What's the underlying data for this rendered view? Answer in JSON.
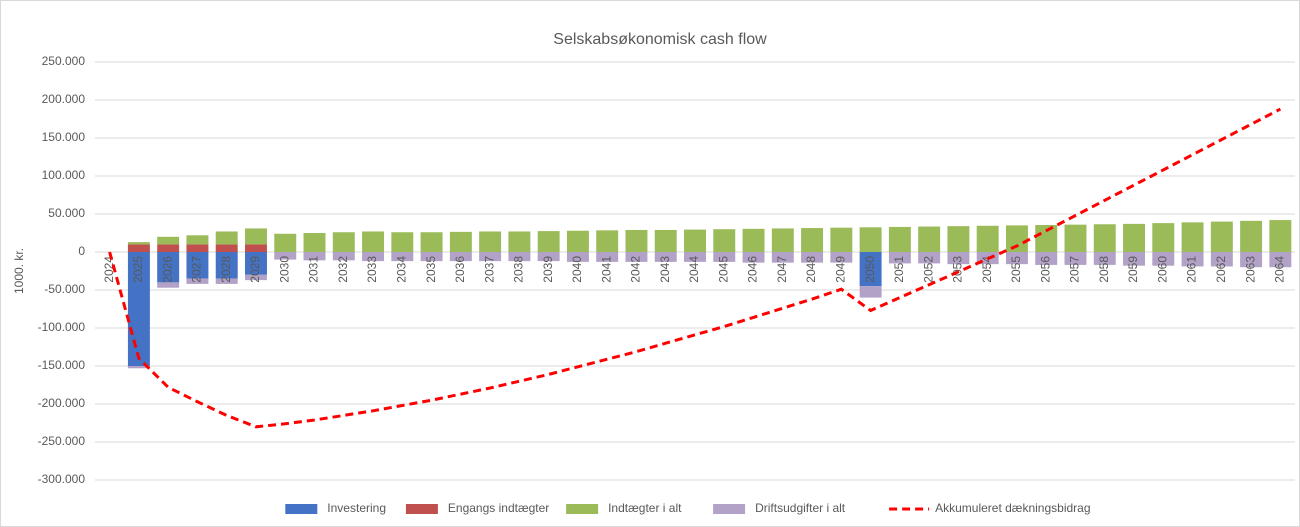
{
  "chart_data": {
    "type": "bar",
    "stacked": true,
    "title": "Selskabsøkonomisk cash flow",
    "y_label": "1000. kr.",
    "categories": [
      "2024",
      "2025",
      "2026",
      "2027",
      "2028",
      "2029",
      "2030",
      "2031",
      "2032",
      "2033",
      "2034",
      "2035",
      "2036",
      "2037",
      "2038",
      "2039",
      "2040",
      "2041",
      "2042",
      "2043",
      "2044",
      "2045",
      "2046",
      "2047",
      "2048",
      "2049",
      "2050",
      "2051",
      "2052",
      "2053",
      "2054",
      "2055",
      "2056",
      "2057",
      "2058",
      "2059",
      "2060",
      "2061",
      "2062",
      "2063",
      "2064"
    ],
    "series": [
      {
        "name": "Investering",
        "type": "bar",
        "color": "#4472c4",
        "values": [
          null,
          -150000,
          -40000,
          -35000,
          -35000,
          -30000,
          null,
          null,
          null,
          null,
          null,
          null,
          null,
          null,
          null,
          null,
          null,
          null,
          null,
          null,
          null,
          null,
          null,
          null,
          null,
          null,
          -45000,
          null,
          null,
          null,
          null,
          null,
          null,
          null,
          null,
          null,
          null,
          null,
          null,
          null,
          null
        ]
      },
      {
        "name": "Engangs indtægter",
        "type": "bar",
        "color": "#c0504d",
        "values": [
          null,
          10000,
          10000,
          10000,
          10000,
          10000,
          null,
          null,
          null,
          null,
          null,
          null,
          null,
          null,
          null,
          null,
          null,
          null,
          null,
          null,
          null,
          null,
          null,
          null,
          null,
          null,
          null,
          null,
          null,
          null,
          null,
          null,
          null,
          null,
          null,
          null,
          null,
          null,
          null,
          null,
          null
        ]
      },
      {
        "name": "Indtægter i alt",
        "type": "bar",
        "color": "#9bbb59",
        "values": [
          null,
          3000,
          10000,
          12000,
          17000,
          21000,
          24000,
          25000,
          26000,
          27000,
          26000,
          26000,
          26500,
          27000,
          27000,
          27500,
          28000,
          28500,
          29000,
          29000,
          29500,
          30000,
          30500,
          31000,
          31500,
          32000,
          32500,
          33000,
          33500,
          34000,
          34500,
          35000,
          35500,
          36000,
          36500,
          37000,
          38000,
          39000,
          40000,
          41000,
          42000
        ]
      },
      {
        "name": "Driftsudgifter i alt",
        "type": "bar",
        "color": "#b3a2c7",
        "values": [
          null,
          -3000,
          -7000,
          -7000,
          -7000,
          -7000,
          -10000,
          -11000,
          -11000,
          -12000,
          -12000,
          -12000,
          -12000,
          -12000,
          -12000,
          -12000,
          -13000,
          -13000,
          -13000,
          -13000,
          -13000,
          -13000,
          -14000,
          -14000,
          -14000,
          -14000,
          -15000,
          -15000,
          -15000,
          -16000,
          -16000,
          -16000,
          -17000,
          -17000,
          -17000,
          -18000,
          -18000,
          -19000,
          -19000,
          -20000,
          -20000
        ]
      },
      {
        "name": "Akkumuleret dækningsbidrag",
        "type": "line",
        "color": "#ff0000",
        "dashed": true,
        "values": [
          0,
          -140000,
          -178000,
          -197000,
          -215000,
          -230000,
          -226000,
          -221000,
          -215000,
          -209000,
          -202000,
          -195000,
          -187000,
          -179000,
          -170000,
          -161000,
          -151000,
          -141000,
          -131000,
          -120000,
          -109000,
          -98000,
          -86000,
          -74000,
          -62000,
          -49000,
          -77000,
          -60000,
          -43000,
          -26000,
          -9000,
          8000,
          28000,
          48000,
          68000,
          88000,
          108000,
          128000,
          148000,
          168000,
          188000
        ]
      }
    ],
    "ylim": [
      -300000,
      250000
    ],
    "yticks": [
      {
        "value": -300000,
        "label": "-300.000"
      },
      {
        "value": -250000,
        "label": "-250.000"
      },
      {
        "value": -200000,
        "label": "-200.000"
      },
      {
        "value": -150000,
        "label": "-150.000"
      },
      {
        "value": -100000,
        "label": "-100.000"
      },
      {
        "value": -50000,
        "label": "-50.000"
      },
      0,
      {
        "value": 50000,
        "label": "50.000"
      },
      {
        "value": 100000,
        "label": "100.000"
      },
      {
        "value": 150000,
        "label": "150.000"
      },
      {
        "value": 200000,
        "label": "200.000"
      },
      {
        "value": 250000,
        "label": "250.000"
      }
    ],
    "grid": true,
    "legend": "bottom"
  }
}
